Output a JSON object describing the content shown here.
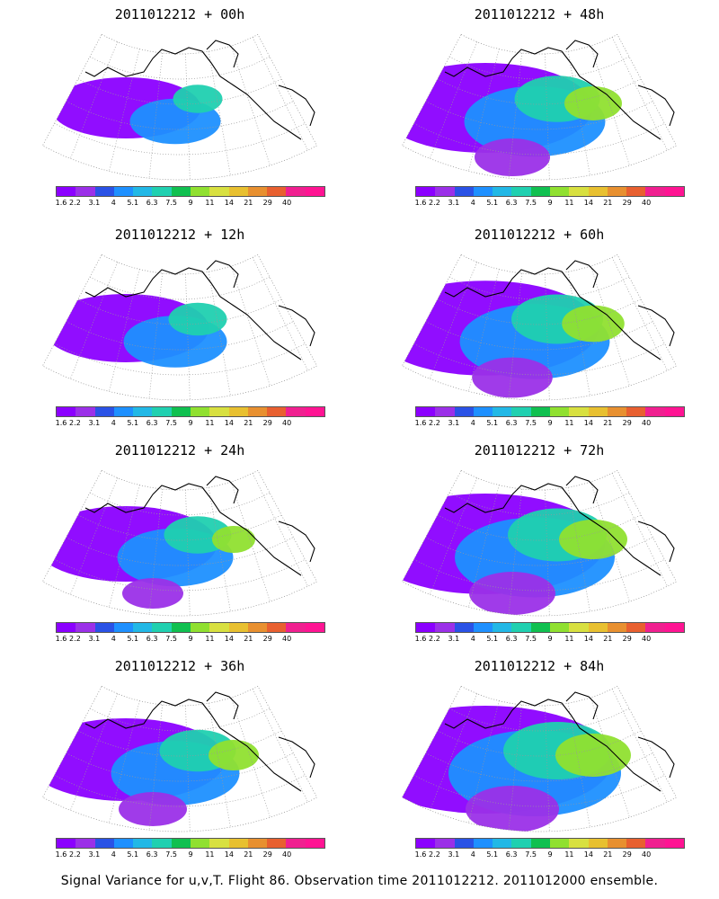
{
  "colorbar": {
    "colors": [
      "#8b00ff",
      "#9b30e8",
      "#2a52e6",
      "#1e90ff",
      "#22b8e6",
      "#20d0b0",
      "#10c050",
      "#90e030",
      "#d8e040",
      "#e8c030",
      "#e89030",
      "#e86030",
      "#f02090",
      "#ff1493"
    ],
    "labels": [
      "1.6",
      "2.2",
      "3.1",
      "4",
      "5.1",
      "6.3",
      "7.5",
      "9",
      "11",
      "14",
      "21",
      "29",
      "40"
    ]
  },
  "panels": [
    {
      "title": "2011012212 + 00h",
      "intensity": 0.15
    },
    {
      "title": "2011012212 + 48h",
      "intensity": 0.55
    },
    {
      "title": "2011012212 + 12h",
      "intensity": 0.25
    },
    {
      "title": "2011012212 + 60h",
      "intensity": 0.62
    },
    {
      "title": "2011012212 + 24h",
      "intensity": 0.35
    },
    {
      "title": "2011012212 + 72h",
      "intensity": 0.7
    },
    {
      "title": "2011012212 + 36h",
      "intensity": 0.45
    },
    {
      "title": "2011012212 + 84h",
      "intensity": 0.8
    }
  ],
  "caption": "Signal Variance for u,v,T. Flight 86. Observation time 2011012212. 2011012000 ensemble."
}
